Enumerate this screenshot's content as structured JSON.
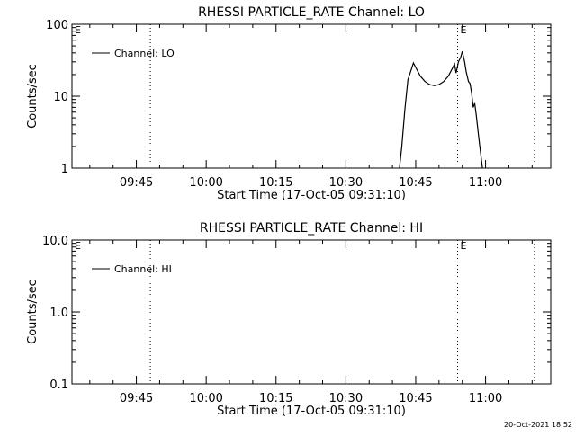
{
  "footer_timestamp": "20-Oct-2021 18:52",
  "chart_data": [
    {
      "type": "line",
      "title": "RHESSI PARTICLE_RATE Channel: LO",
      "xlabel": "Start Time (17-Oct-05 09:31:10)",
      "ylabel": "Counts/sec",
      "yscale": "log",
      "ylim": [
        1,
        100
      ],
      "xlim": [
        "09:31:10",
        "11:14:00"
      ],
      "x_tick_labels": [
        "09:45",
        "10:00",
        "10:15",
        "10:30",
        "10:45",
        "11:00"
      ],
      "y_tick_labels": [
        "1",
        "10",
        "100"
      ],
      "legend": "top-left",
      "series": [
        {
          "name": "Channel: LO",
          "points": [
            [
              "10:41:30",
              1.0
            ],
            [
              "10:42:00",
              2.0
            ],
            [
              "10:42:40",
              6.5
            ],
            [
              "10:43:20",
              17.0
            ],
            [
              "10:44:00",
              23.0
            ],
            [
              "10:44:30",
              29.0
            ],
            [
              "10:45:10",
              24.0
            ],
            [
              "10:46:00",
              19.0
            ],
            [
              "10:47:00",
              16.0
            ],
            [
              "10:48:00",
              14.5
            ],
            [
              "10:49:00",
              14.0
            ],
            [
              "10:50:00",
              14.5
            ],
            [
              "10:51:00",
              16.0
            ],
            [
              "10:52:00",
              19.0
            ],
            [
              "10:52:40",
              23.0
            ],
            [
              "10:53:20",
              28.0
            ],
            [
              "10:53:40",
              21.0
            ],
            [
              "10:54:10",
              30.0
            ],
            [
              "10:54:40",
              35.0
            ],
            [
              "10:55:00",
              42.0
            ],
            [
              "10:55:30",
              30.0
            ],
            [
              "10:55:50",
              22.0
            ],
            [
              "10:56:20",
              16.0
            ],
            [
              "10:56:40",
              15.0
            ],
            [
              "10:57:00",
              11.0
            ],
            [
              "10:57:20",
              7.0
            ],
            [
              "10:57:40",
              8.0
            ],
            [
              "10:58:00",
              5.5
            ],
            [
              "10:58:30",
              2.8
            ],
            [
              "10:59:00",
              1.5
            ],
            [
              "10:59:20",
              1.0
            ]
          ]
        }
      ],
      "annotations": [
        {
          "text": "E",
          "x": "09:31:10"
        },
        {
          "text": "E",
          "x": "10:54:00"
        }
      ],
      "vertical_lines": [
        "09:48:00",
        "10:54:00",
        "11:10:30"
      ]
    },
    {
      "type": "line",
      "title": "RHESSI PARTICLE_RATE Channel: HI",
      "xlabel": "Start Time (17-Oct-05 09:31:10)",
      "ylabel": "Counts/sec",
      "yscale": "log",
      "ylim": [
        0.1,
        10
      ],
      "xlim": [
        "09:31:10",
        "11:14:00"
      ],
      "x_tick_labels": [
        "09:45",
        "10:00",
        "10:15",
        "10:30",
        "10:45",
        "11:00"
      ],
      "y_tick_labels": [
        "0.1",
        "1.0",
        "10.0"
      ],
      "legend": "top-left",
      "series": [
        {
          "name": "Channel: HI",
          "points": []
        }
      ],
      "annotations": [
        {
          "text": "E",
          "x": "09:31:10"
        },
        {
          "text": "E",
          "x": "10:54:00"
        }
      ],
      "vertical_lines": [
        "09:48:00",
        "10:54:00",
        "11:10:30"
      ]
    }
  ]
}
